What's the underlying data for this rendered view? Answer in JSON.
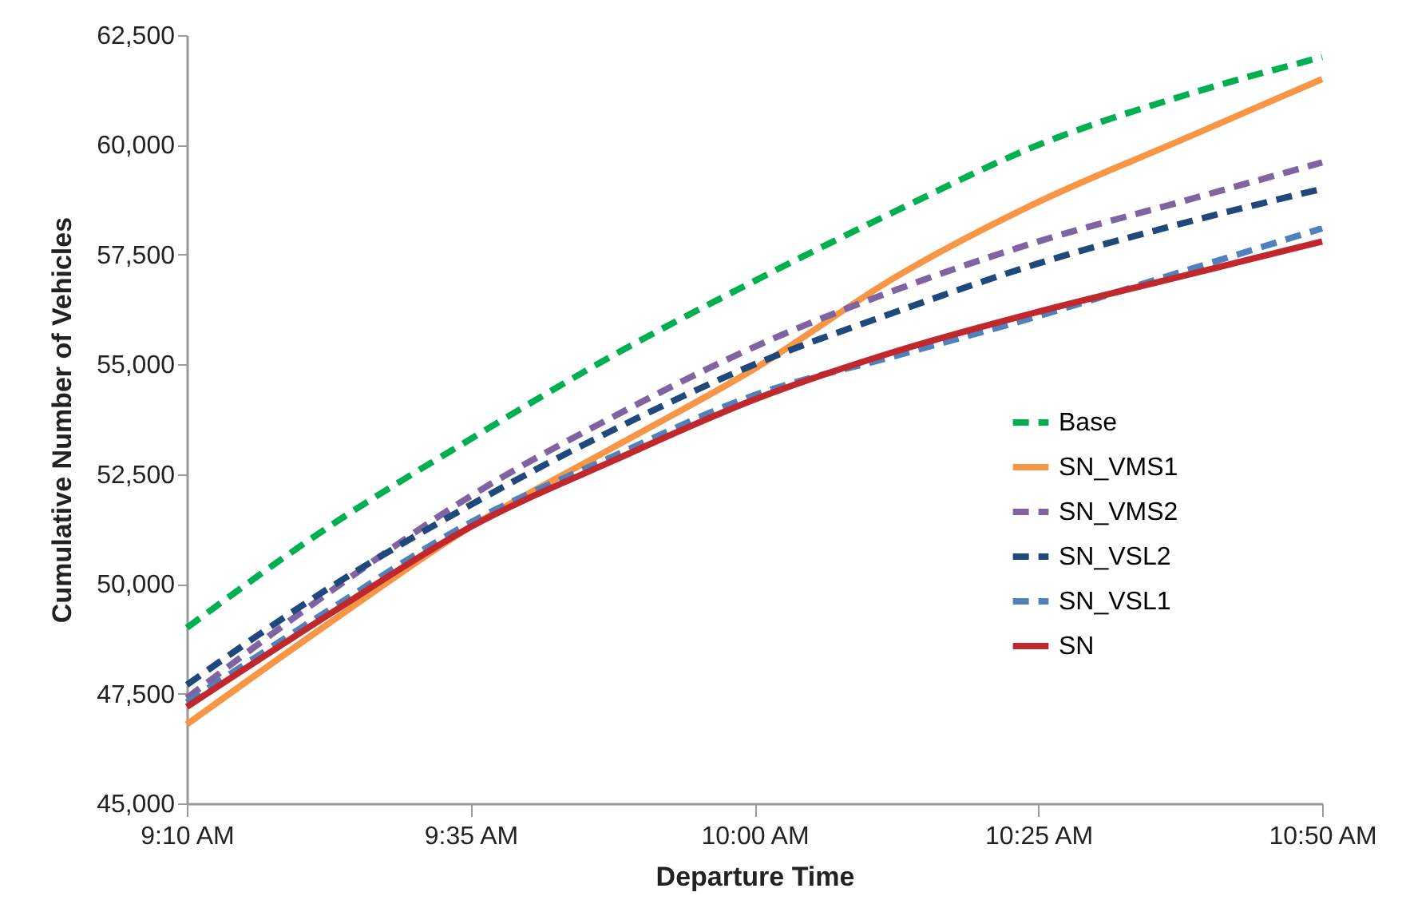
{
  "chart_data": {
    "type": "line",
    "xlabel": "Departure Time",
    "ylabel": "Cumulative Number of Vehicles",
    "x": [
      9.1667,
      9.375,
      9.5833,
      9.7917,
      10.0,
      10.2083,
      10.4167,
      10.625,
      10.8333
    ],
    "xlim": [
      9.1667,
      10.8333
    ],
    "xticks": [
      {
        "value": 9.1667,
        "label": "9:10 AM"
      },
      {
        "value": 9.5833,
        "label": "9:35 AM"
      },
      {
        "value": 10.0,
        "label": "10:00 AM"
      },
      {
        "value": 10.4167,
        "label": "10:25 AM"
      },
      {
        "value": 10.8333,
        "label": "10:50 AM"
      }
    ],
    "ylim": [
      45000,
      62500
    ],
    "yticks": [
      {
        "value": 45000,
        "label": "45,000"
      },
      {
        "value": 47500,
        "label": "47,500"
      },
      {
        "value": 50000,
        "label": "50,000"
      },
      {
        "value": 52500,
        "label": "52,500"
      },
      {
        "value": 55000,
        "label": "55,000"
      },
      {
        "value": 57500,
        "label": "57,500"
      },
      {
        "value": 60000,
        "label": "60,000"
      },
      {
        "value": 62500,
        "label": "62,500"
      }
    ],
    "grid": false,
    "legend": "bottom right",
    "series": [
      {
        "name": "Base",
        "color": "#00b050",
        "line_style": "dashed",
        "values": [
          49000,
          51300,
          53300,
          55200,
          56900,
          58500,
          60000,
          61100,
          62000
        ]
      },
      {
        "name": "SN_VMS1",
        "color": "#f79646",
        "line_style": "solid",
        "values": [
          46800,
          49100,
          51300,
          53100,
          54900,
          57000,
          58700,
          60100,
          61500
        ]
      },
      {
        "name": "SN_VMS2",
        "color": "#8064a2",
        "line_style": "dashed",
        "values": [
          47400,
          49800,
          52000,
          53800,
          55400,
          56700,
          57800,
          58700,
          59600
        ]
      },
      {
        "name": "SN_VSL2",
        "color": "#1f497d",
        "line_style": "dashed",
        "values": [
          47700,
          49900,
          51800,
          53500,
          55000,
          56200,
          57300,
          58200,
          59000
        ]
      },
      {
        "name": "SN_VSL1",
        "color": "#4f81bd",
        "line_style": "dashed",
        "values": [
          47300,
          49400,
          51400,
          52900,
          54300,
          55200,
          56100,
          57100,
          58100
        ]
      },
      {
        "name": "SN",
        "color": "#c0282d",
        "line_style": "solid",
        "values": [
          47200,
          49300,
          51300,
          52800,
          54200,
          55300,
          56200,
          57000,
          57800
        ]
      }
    ]
  }
}
